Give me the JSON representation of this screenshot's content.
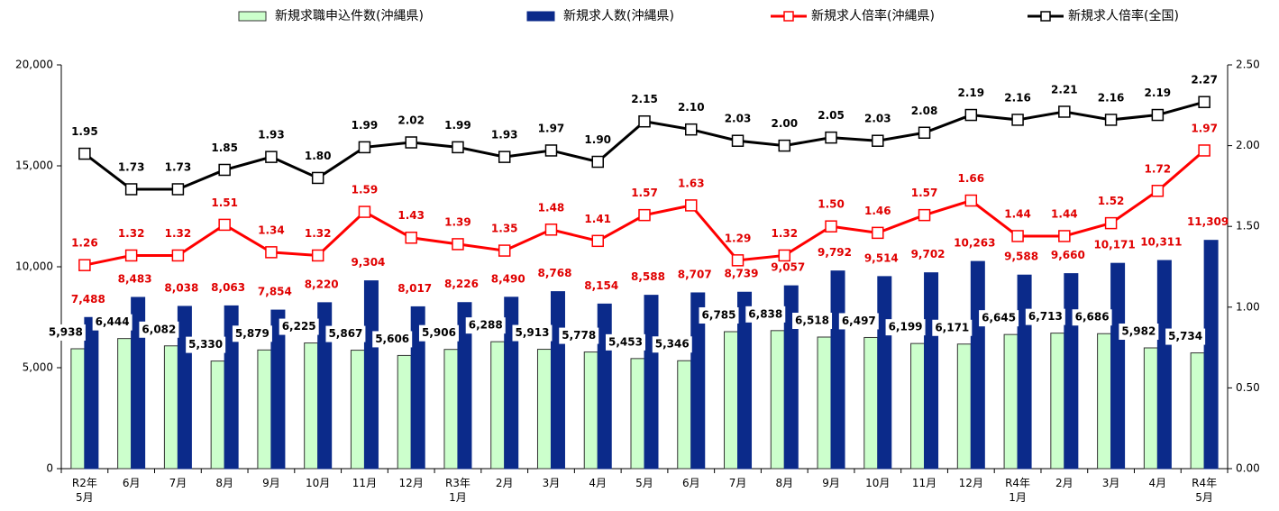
{
  "chart_data": {
    "type": "bar",
    "categories": [
      "R2年\n5月",
      "6月",
      "7月",
      "8月",
      "9月",
      "10月",
      "11月",
      "12月",
      "R3年\n1月",
      "2月",
      "3月",
      "4月",
      "5月",
      "6月",
      "7月",
      "8月",
      "9月",
      "10月",
      "11月",
      "12月",
      "R4年\n1月",
      "2月",
      "3月",
      "4月",
      "R4年\n5月"
    ],
    "series": [
      {
        "name": "新規求職申込件数(沖縄県)",
        "type": "bar",
        "color": "#ccffcc",
        "stroke": "#333333",
        "label_color": "#000000",
        "values": [
          5938,
          6444,
          6082,
          5330,
          5879,
          6225,
          5867,
          5606,
          5906,
          6288,
          5913,
          5778,
          5453,
          5346,
          6785,
          6838,
          6518,
          6497,
          6199,
          6171,
          6645,
          6713,
          6686,
          5982,
          5734
        ],
        "value_labels": [
          "5,938",
          "6,444",
          "6,082",
          "5,330",
          "5,879",
          "6,225",
          "5,867",
          "5,606",
          "5,906",
          "6,288",
          "5,913",
          "5,778",
          "5,453",
          "5,346",
          "6,785",
          "6,838",
          "6,518",
          "6,497",
          "6,199",
          "6,171",
          "6,645",
          "6,713",
          "6,686",
          "5,982",
          "5,734"
        ]
      },
      {
        "name": "新規求人数(沖縄県)",
        "type": "bar",
        "color": "#0b2a8a",
        "stroke": "#0b2a8a",
        "label_color": "#e00000",
        "values": [
          7488,
          8483,
          8038,
          8063,
          7854,
          8220,
          9304,
          8017,
          8226,
          8490,
          8768,
          8154,
          8588,
          8707,
          8739,
          9057,
          9792,
          9514,
          9702,
          10263,
          9588,
          9660,
          10171,
          10311,
          11309
        ],
        "value_labels": [
          "7,488",
          "8,483",
          "8,038",
          "8,063",
          "7,854",
          "8,220",
          "9,304",
          "8,017",
          "8,226",
          "8,490",
          "8,768",
          "8,154",
          "8,588",
          "8,707",
          "8,739",
          "9,057",
          "9,792",
          "9,514",
          "9,702",
          "10,263",
          "9,588",
          "9,660",
          "10,171",
          "10,311",
          "11,309"
        ]
      },
      {
        "name": "新規求人倍率(沖縄県)",
        "type": "line",
        "axis": "y2",
        "color": "#ff0000",
        "label_color": "#e00000",
        "values": [
          1.26,
          1.32,
          1.32,
          1.51,
          1.34,
          1.32,
          1.59,
          1.43,
          1.39,
          1.35,
          1.48,
          1.41,
          1.57,
          1.63,
          1.29,
          1.32,
          1.5,
          1.46,
          1.57,
          1.66,
          1.44,
          1.44,
          1.52,
          1.72,
          1.97
        ],
        "value_labels": [
          "1.26",
          "1.32",
          "1.32",
          "1.51",
          "1.34",
          "1.32",
          "1.59",
          "1.43",
          "1.39",
          "1.35",
          "1.48",
          "1.41",
          "1.57",
          "1.63",
          "1.29",
          "1.32",
          "1.50",
          "1.46",
          "1.57",
          "1.66",
          "1.44",
          "1.44",
          "1.52",
          "1.72",
          "1.97"
        ]
      },
      {
        "name": "新規求人倍率(全国)",
        "type": "line",
        "axis": "y2",
        "color": "#000000",
        "label_color": "#000000",
        "values": [
          1.95,
          1.73,
          1.73,
          1.85,
          1.93,
          1.8,
          1.99,
          2.02,
          1.99,
          1.93,
          1.97,
          1.9,
          2.15,
          2.1,
          2.03,
          2.0,
          2.05,
          2.03,
          2.08,
          2.19,
          2.16,
          2.21,
          2.16,
          2.19,
          2.27
        ],
        "value_labels": [
          "1.95",
          "1.73",
          "1.73",
          "1.85",
          "1.93",
          "1.80",
          "1.99",
          "2.02",
          "1.99",
          "1.93",
          "1.97",
          "1.90",
          "2.15",
          "2.10",
          "2.03",
          "2.00",
          "2.05",
          "2.03",
          "2.08",
          "2.19",
          "2.16",
          "2.21",
          "2.16",
          "2.19",
          "2.27"
        ]
      }
    ],
    "ylim": [
      0,
      20000
    ],
    "yticks": [
      0,
      {
        "value": 5000,
        "label": "5,000"
      },
      {
        "value": 10000,
        "label": "10,000"
      },
      {
        "value": 15000,
        "label": "15,000"
      },
      {
        "value": 20000,
        "label": "20,000"
      }
    ],
    "y2lim": [
      0,
      2.5
    ],
    "y2ticks": [
      {
        "value": 0,
        "label": "0.00"
      },
      {
        "value": 0.5,
        "label": "0.50"
      },
      {
        "value": 1,
        "label": "1.00"
      },
      {
        "value": 1.5,
        "label": "1.50"
      },
      {
        "value": 2,
        "label": "2.00"
      },
      {
        "value": 2.5,
        "label": "2.50"
      }
    ],
    "legend": "top"
  }
}
